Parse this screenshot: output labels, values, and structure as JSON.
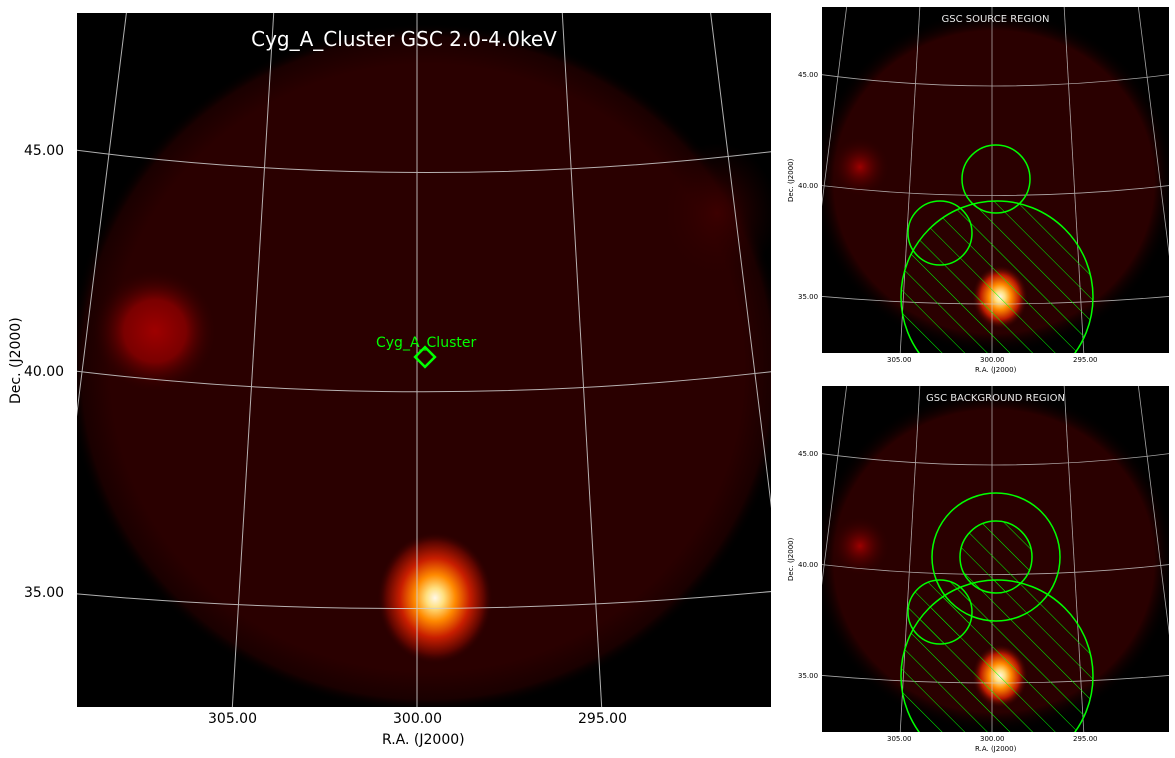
{
  "main": {
    "title": "Cyg_A_Cluster GSC 2.0-4.0keV",
    "xlabel": "R.A. (J2000)",
    "ylabel": "Dec. (J2000)",
    "x_ticks": [
      "305.00",
      "300.00",
      "295.00"
    ],
    "y_ticks": [
      "45.00",
      "40.00",
      "35.00"
    ],
    "source_label": "Cyg_A_Cluster"
  },
  "source_panel": {
    "title": "GSC SOURCE REGION",
    "xlabel": "R.A. (J2000)",
    "ylabel": "Dec. (J2000)",
    "x_ticks": [
      "305.00",
      "300.00",
      "295.00"
    ],
    "y_ticks": [
      "45.00",
      "40.00",
      "35.00"
    ]
  },
  "background_panel": {
    "title": "GSC BACKGROUND REGION",
    "xlabel": "R.A. (J2000)",
    "ylabel": "Dec. (J2000)",
    "x_ticks": [
      "305.00",
      "300.00",
      "295.00"
    ],
    "y_ticks": [
      "45.00",
      "40.00",
      "35.00"
    ]
  },
  "colors": {
    "region": "#00ff00",
    "grid": "#d0d0d0",
    "background": "#000000"
  }
}
